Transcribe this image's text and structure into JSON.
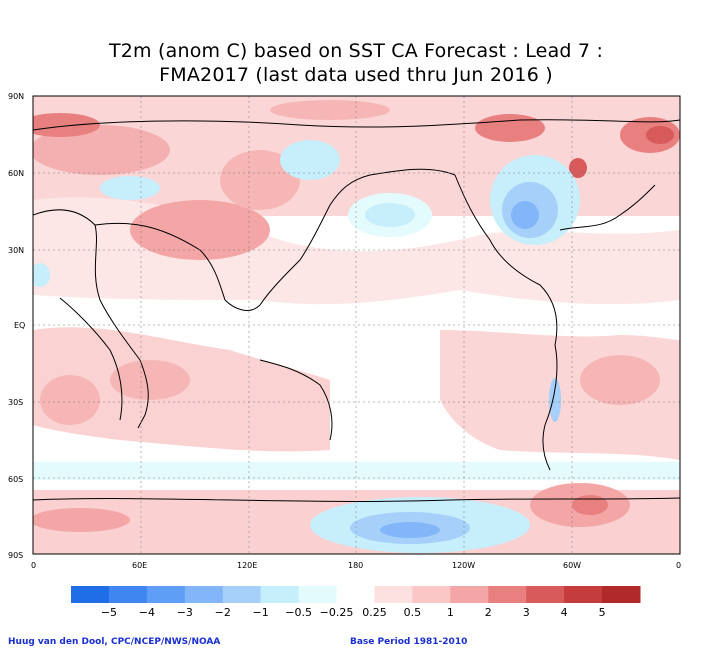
{
  "title": {
    "line1": "T2m (anom C) based on SST CA Forecast : Lead 7 :",
    "line2": "FMA2017 (last data used thru Jun 2016 )"
  },
  "axes": {
    "lat_labels": [
      "90N",
      "60N",
      "30N",
      "EQ",
      "30S",
      "60S",
      "90S"
    ],
    "lon_labels": [
      "0",
      "60E",
      "120E",
      "180",
      "120W",
      "60W",
      "0"
    ]
  },
  "colorbar": {
    "labels": [
      "−5",
      "−4",
      "−3",
      "−2",
      "−1",
      "−0.5",
      "−0.25",
      "0.25",
      "0.5",
      "1",
      "2",
      "3",
      "4",
      "5"
    ],
    "colors": [
      "#1f6ee8",
      "#3f86f0",
      "#5f9ef6",
      "#82b6f8",
      "#a6d0fa",
      "#c6eefb",
      "#e3fbfd",
      "#ffffff",
      "#fde0e0",
      "#fbc6c6",
      "#f4a6a6",
      "#e88080",
      "#d85a5a",
      "#c43c3c",
      "#b02a2a"
    ]
  },
  "credits": {
    "left": "Huug van den Dool, CPC/NCEP/NWS/NOAA",
    "right": "Base Period 1981-2010"
  }
}
